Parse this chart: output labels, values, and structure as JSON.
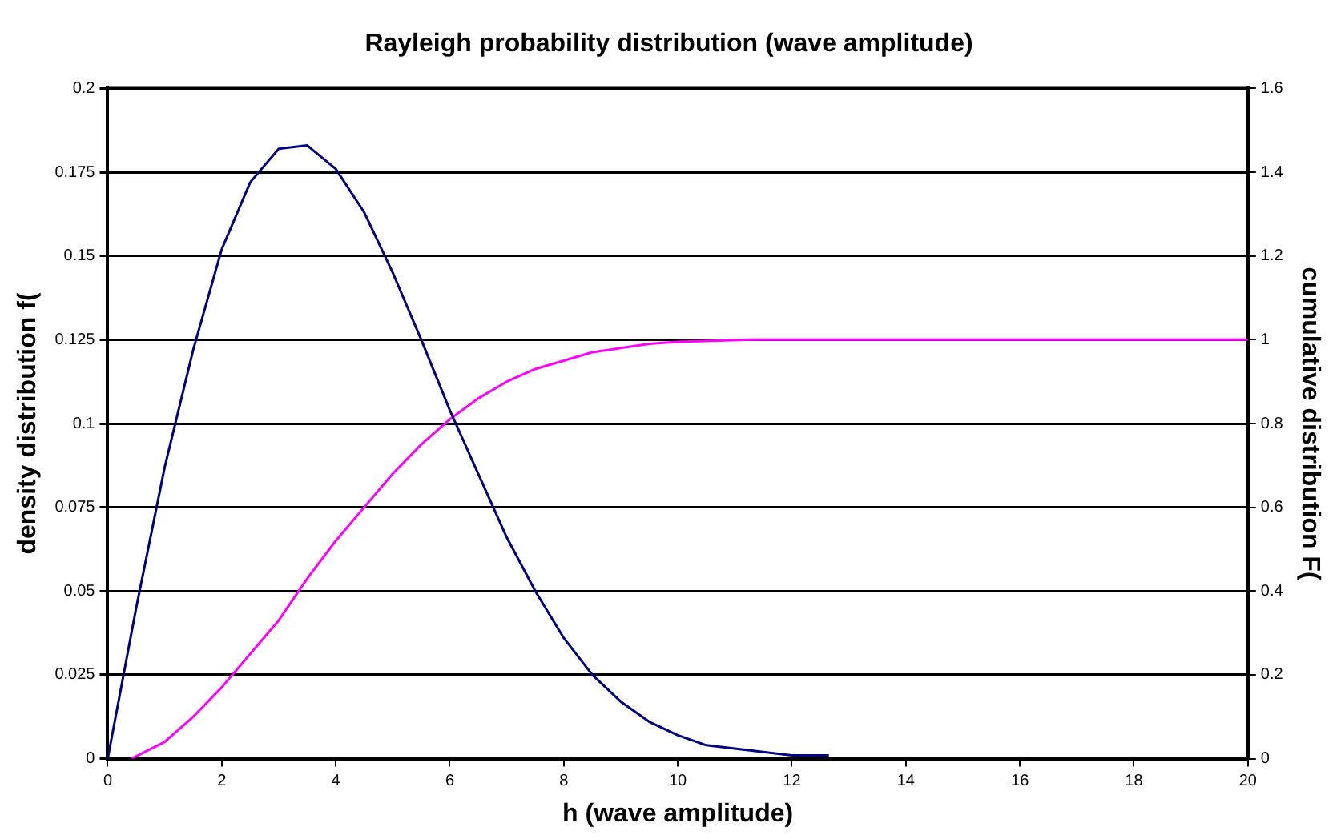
{
  "chart_data": {
    "type": "line",
    "title": "Rayleigh probability distribution (wave amplitude)",
    "xlabel": "h (wave amplitude)",
    "ylabel": "density distribution f(",
    "y2label": "cumulative distribution F(",
    "xlim": [
      0,
      20
    ],
    "xticks": [
      0,
      2,
      4,
      6,
      8,
      10,
      12,
      14,
      16,
      18,
      20
    ],
    "ylim": [
      0,
      0.2
    ],
    "yticks": [
      0,
      0.025,
      0.05,
      0.075,
      0.1,
      0.125,
      0.15,
      0.175,
      0.2
    ],
    "y2lim": [
      0,
      1.6
    ],
    "y2ticks": [
      0,
      0.2,
      0.4,
      0.6,
      0.8,
      1,
      1.2,
      1.4,
      1.6
    ],
    "grid": "y",
    "legend": false,
    "marker": "none",
    "line_style": "solid",
    "series": [
      {
        "color": "#000080",
        "x": [
          0,
          0.5,
          1,
          1.5,
          2,
          2.5,
          3,
          3.5,
          4,
          4.5,
          5,
          5.5,
          6,
          6.5,
          7,
          7.5,
          8,
          8.5,
          9,
          9.5,
          10,
          10.5,
          11,
          11.5,
          12,
          12.65
        ],
        "values": [
          0,
          0.045,
          0.087,
          0.122,
          0.152,
          0.172,
          0.182,
          0.183,
          0.176,
          0.163,
          0.145,
          0.125,
          0.104,
          0.085,
          0.066,
          0.05,
          0.036,
          0.025,
          0.017,
          0.011,
          0.007,
          0.004,
          0.003,
          0.002,
          0.001,
          0.001
        ]
      },
      {
        "color": "#ff00ff",
        "axis": "y2",
        "x": [
          0.42,
          1,
          1.5,
          2,
          2.5,
          3,
          3.5,
          4,
          4.5,
          5,
          5.5,
          6,
          6.5,
          7,
          7.5,
          8,
          8.5,
          9,
          9.5,
          10,
          11.3,
          20
        ],
        "values": [
          0,
          0.04,
          0.1,
          0.17,
          0.25,
          0.33,
          0.43,
          0.52,
          0.6,
          0.68,
          0.75,
          0.81,
          0.86,
          0.9,
          0.93,
          0.95,
          0.97,
          0.98,
          0.99,
          0.995,
          1,
          1
        ]
      }
    ]
  }
}
